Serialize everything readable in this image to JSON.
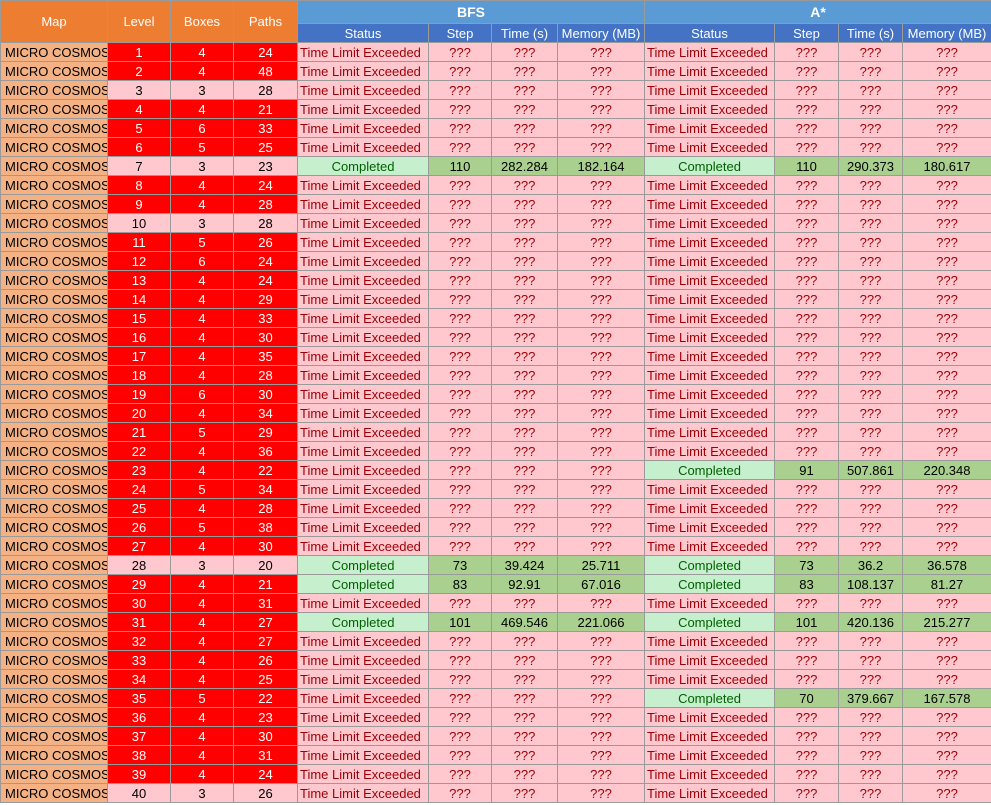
{
  "headers": {
    "map": "Map",
    "level": "Level",
    "boxes": "Boxes",
    "paths": "Paths",
    "bfs": "BFS",
    "astar": "A*",
    "sub": [
      "Status",
      "Step",
      "Time (s)",
      "Memory (MB)"
    ]
  },
  "placeholder": "???",
  "rows": [
    {
      "map": "MICRO COSMOS",
      "level": "1",
      "boxes": "4",
      "paths": "24",
      "red": true,
      "bfs": {
        "status": "Time Limit Exceeded",
        "ok": false
      },
      "astar": {
        "status": "Time Limit Exceeded",
        "ok": false
      }
    },
    {
      "map": "MICRO COSMOS",
      "level": "2",
      "boxes": "4",
      "paths": "48",
      "red": true,
      "bfs": {
        "status": "Time Limit Exceeded",
        "ok": false
      },
      "astar": {
        "status": "Time Limit Exceeded",
        "ok": false
      }
    },
    {
      "map": "MICRO COSMOS",
      "level": "3",
      "boxes": "3",
      "paths": "28",
      "red": false,
      "bfs": {
        "status": "Time Limit Exceeded",
        "ok": false
      },
      "astar": {
        "status": "Time Limit Exceeded",
        "ok": false
      }
    },
    {
      "map": "MICRO COSMOS",
      "level": "4",
      "boxes": "4",
      "paths": "21",
      "red": true,
      "bfs": {
        "status": "Time Limit Exceeded",
        "ok": false
      },
      "astar": {
        "status": "Time Limit Exceeded",
        "ok": false
      }
    },
    {
      "map": "MICRO COSMOS",
      "level": "5",
      "boxes": "6",
      "paths": "33",
      "red": true,
      "bfs": {
        "status": "Time Limit Exceeded",
        "ok": false
      },
      "astar": {
        "status": "Time Limit Exceeded",
        "ok": false
      }
    },
    {
      "map": "MICRO COSMOS",
      "level": "6",
      "boxes": "5",
      "paths": "25",
      "red": true,
      "bfs": {
        "status": "Time Limit Exceeded",
        "ok": false
      },
      "astar": {
        "status": "Time Limit Exceeded",
        "ok": false
      }
    },
    {
      "map": "MICRO COSMOS",
      "level": "7",
      "boxes": "3",
      "paths": "23",
      "red": false,
      "bfs": {
        "status": "Completed",
        "ok": true,
        "step": "110",
        "time": "282.284",
        "memory": "182.164"
      },
      "astar": {
        "status": "Completed",
        "ok": true,
        "step": "110",
        "time": "290.373",
        "memory": "180.617"
      }
    },
    {
      "map": "MICRO COSMOS",
      "level": "8",
      "boxes": "4",
      "paths": "24",
      "red": true,
      "bfs": {
        "status": "Time Limit Exceeded",
        "ok": false
      },
      "astar": {
        "status": "Time Limit Exceeded",
        "ok": false
      }
    },
    {
      "map": "MICRO COSMOS",
      "level": "9",
      "boxes": "4",
      "paths": "28",
      "red": true,
      "bfs": {
        "status": "Time Limit Exceeded",
        "ok": false
      },
      "astar": {
        "status": "Time Limit Exceeded",
        "ok": false
      }
    },
    {
      "map": "MICRO COSMOS",
      "level": "10",
      "boxes": "3",
      "paths": "28",
      "red": false,
      "bfs": {
        "status": "Time Limit Exceeded",
        "ok": false
      },
      "astar": {
        "status": "Time Limit Exceeded",
        "ok": false
      }
    },
    {
      "map": "MICRO COSMOS",
      "level": "11",
      "boxes": "5",
      "paths": "26",
      "red": true,
      "bfs": {
        "status": "Time Limit Exceeded",
        "ok": false
      },
      "astar": {
        "status": "Time Limit Exceeded",
        "ok": false
      }
    },
    {
      "map": "MICRO COSMOS",
      "level": "12",
      "boxes": "6",
      "paths": "24",
      "red": true,
      "bfs": {
        "status": "Time Limit Exceeded",
        "ok": false
      },
      "astar": {
        "status": "Time Limit Exceeded",
        "ok": false
      }
    },
    {
      "map": "MICRO COSMOS",
      "level": "13",
      "boxes": "4",
      "paths": "24",
      "red": true,
      "bfs": {
        "status": "Time Limit Exceeded",
        "ok": false
      },
      "astar": {
        "status": "Time Limit Exceeded",
        "ok": false
      }
    },
    {
      "map": "MICRO COSMOS",
      "level": "14",
      "boxes": "4",
      "paths": "29",
      "red": true,
      "bfs": {
        "status": "Time Limit Exceeded",
        "ok": false
      },
      "astar": {
        "status": "Time Limit Exceeded",
        "ok": false
      }
    },
    {
      "map": "MICRO COSMOS",
      "level": "15",
      "boxes": "4",
      "paths": "33",
      "red": true,
      "bfs": {
        "status": "Time Limit Exceeded",
        "ok": false
      },
      "astar": {
        "status": "Time Limit Exceeded",
        "ok": false
      }
    },
    {
      "map": "MICRO COSMOS",
      "level": "16",
      "boxes": "4",
      "paths": "30",
      "red": true,
      "bfs": {
        "status": "Time Limit Exceeded",
        "ok": false
      },
      "astar": {
        "status": "Time Limit Exceeded",
        "ok": false
      }
    },
    {
      "map": "MICRO COSMOS",
      "level": "17",
      "boxes": "4",
      "paths": "35",
      "red": true,
      "bfs": {
        "status": "Time Limit Exceeded",
        "ok": false
      },
      "astar": {
        "status": "Time Limit Exceeded",
        "ok": false
      }
    },
    {
      "map": "MICRO COSMOS",
      "level": "18",
      "boxes": "4",
      "paths": "28",
      "red": true,
      "bfs": {
        "status": "Time Limit Exceeded",
        "ok": false
      },
      "astar": {
        "status": "Time Limit Exceeded",
        "ok": false
      }
    },
    {
      "map": "MICRO COSMOS",
      "level": "19",
      "boxes": "6",
      "paths": "30",
      "red": true,
      "bfs": {
        "status": "Time Limit Exceeded",
        "ok": false
      },
      "astar": {
        "status": "Time Limit Exceeded",
        "ok": false
      }
    },
    {
      "map": "MICRO COSMOS",
      "level": "20",
      "boxes": "4",
      "paths": "34",
      "red": true,
      "bfs": {
        "status": "Time Limit Exceeded",
        "ok": false
      },
      "astar": {
        "status": "Time Limit Exceeded",
        "ok": false
      }
    },
    {
      "map": "MICRO COSMOS",
      "level": "21",
      "boxes": "5",
      "paths": "29",
      "red": true,
      "bfs": {
        "status": "Time Limit Exceeded",
        "ok": false
      },
      "astar": {
        "status": "Time Limit Exceeded",
        "ok": false
      }
    },
    {
      "map": "MICRO COSMOS",
      "level": "22",
      "boxes": "4",
      "paths": "36",
      "red": true,
      "bfs": {
        "status": "Time Limit Exceeded",
        "ok": false
      },
      "astar": {
        "status": "Time Limit Exceeded",
        "ok": false
      }
    },
    {
      "map": "MICRO COSMOS",
      "level": "23",
      "boxes": "4",
      "paths": "22",
      "red": true,
      "bfs": {
        "status": "Time Limit Exceeded",
        "ok": false
      },
      "astar": {
        "status": "Completed",
        "ok": true,
        "step": "91",
        "time": "507.861",
        "memory": "220.348"
      }
    },
    {
      "map": "MICRO COSMOS",
      "level": "24",
      "boxes": "5",
      "paths": "34",
      "red": true,
      "bfs": {
        "status": "Time Limit Exceeded",
        "ok": false
      },
      "astar": {
        "status": "Time Limit Exceeded",
        "ok": false
      }
    },
    {
      "map": "MICRO COSMOS",
      "level": "25",
      "boxes": "4",
      "paths": "28",
      "red": true,
      "bfs": {
        "status": "Time Limit Exceeded",
        "ok": false
      },
      "astar": {
        "status": "Time Limit Exceeded",
        "ok": false
      }
    },
    {
      "map": "MICRO COSMOS",
      "level": "26",
      "boxes": "5",
      "paths": "38",
      "red": true,
      "bfs": {
        "status": "Time Limit Exceeded",
        "ok": false
      },
      "astar": {
        "status": "Time Limit Exceeded",
        "ok": false
      }
    },
    {
      "map": "MICRO COSMOS",
      "level": "27",
      "boxes": "4",
      "paths": "30",
      "red": true,
      "bfs": {
        "status": "Time Limit Exceeded",
        "ok": false
      },
      "astar": {
        "status": "Time Limit Exceeded",
        "ok": false
      }
    },
    {
      "map": "MICRO COSMOS",
      "level": "28",
      "boxes": "3",
      "paths": "20",
      "red": false,
      "bfs": {
        "status": "Completed",
        "ok": true,
        "step": "73",
        "time": "39.424",
        "memory": "25.711"
      },
      "astar": {
        "status": "Completed",
        "ok": true,
        "step": "73",
        "time": "36.2",
        "memory": "36.578"
      }
    },
    {
      "map": "MICRO COSMOS",
      "level": "29",
      "boxes": "4",
      "paths": "21",
      "red": true,
      "bfs": {
        "status": "Completed",
        "ok": true,
        "step": "83",
        "time": "92.91",
        "memory": "67.016"
      },
      "astar": {
        "status": "Completed",
        "ok": true,
        "step": "83",
        "time": "108.137",
        "memory": "81.27"
      }
    },
    {
      "map": "MICRO COSMOS",
      "level": "30",
      "boxes": "4",
      "paths": "31",
      "red": true,
      "bfs": {
        "status": "Time Limit Exceeded",
        "ok": false
      },
      "astar": {
        "status": "Time Limit Exceeded",
        "ok": false
      }
    },
    {
      "map": "MICRO COSMOS",
      "level": "31",
      "boxes": "4",
      "paths": "27",
      "red": true,
      "bfs": {
        "status": "Completed",
        "ok": true,
        "step": "101",
        "time": "469.546",
        "memory": "221.066"
      },
      "astar": {
        "status": "Completed",
        "ok": true,
        "step": "101",
        "time": "420.136",
        "memory": "215.277"
      }
    },
    {
      "map": "MICRO COSMOS",
      "level": "32",
      "boxes": "4",
      "paths": "27",
      "red": true,
      "bfs": {
        "status": "Time Limit Exceeded",
        "ok": false
      },
      "astar": {
        "status": "Time Limit Exceeded",
        "ok": false
      }
    },
    {
      "map": "MICRO COSMOS",
      "level": "33",
      "boxes": "4",
      "paths": "26",
      "red": true,
      "bfs": {
        "status": "Time Limit Exceeded",
        "ok": false
      },
      "astar": {
        "status": "Time Limit Exceeded",
        "ok": false
      }
    },
    {
      "map": "MICRO COSMOS",
      "level": "34",
      "boxes": "4",
      "paths": "25",
      "red": true,
      "bfs": {
        "status": "Time Limit Exceeded",
        "ok": false
      },
      "astar": {
        "status": "Time Limit Exceeded",
        "ok": false
      }
    },
    {
      "map": "MICRO COSMOS",
      "level": "35",
      "boxes": "5",
      "paths": "22",
      "red": true,
      "bfs": {
        "status": "Time Limit Exceeded",
        "ok": false
      },
      "astar": {
        "status": "Completed",
        "ok": true,
        "step": "70",
        "time": "379.667",
        "memory": "167.578"
      }
    },
    {
      "map": "MICRO COSMOS",
      "level": "36",
      "boxes": "4",
      "paths": "23",
      "red": true,
      "bfs": {
        "status": "Time Limit Exceeded",
        "ok": false
      },
      "astar": {
        "status": "Time Limit Exceeded",
        "ok": false
      }
    },
    {
      "map": "MICRO COSMOS",
      "level": "37",
      "boxes": "4",
      "paths": "30",
      "red": true,
      "bfs": {
        "status": "Time Limit Exceeded",
        "ok": false
      },
      "astar": {
        "status": "Time Limit Exceeded",
        "ok": false
      }
    },
    {
      "map": "MICRO COSMOS",
      "level": "38",
      "boxes": "4",
      "paths": "31",
      "red": true,
      "bfs": {
        "status": "Time Limit Exceeded",
        "ok": false
      },
      "astar": {
        "status": "Time Limit Exceeded",
        "ok": false
      }
    },
    {
      "map": "MICRO COSMOS",
      "level": "39",
      "boxes": "4",
      "paths": "24",
      "red": true,
      "bfs": {
        "status": "Time Limit Exceeded",
        "ok": false
      },
      "astar": {
        "status": "Time Limit Exceeded",
        "ok": false
      }
    },
    {
      "map": "MICRO COSMOS",
      "level": "40",
      "boxes": "3",
      "paths": "26",
      "red": false,
      "bfs": {
        "status": "Time Limit Exceeded",
        "ok": false
      },
      "astar": {
        "status": "Time Limit Exceeded",
        "ok": false
      }
    }
  ],
  "colors": {
    "header_orange": "#ed7d31",
    "header_blue": "#4472c4",
    "header_blue_light": "#5b9bd5",
    "map_cell": "#f4b183",
    "hard_level": "#ff0000",
    "easy_level": "#ffc7ce",
    "tle_fill": "#ffc7ce",
    "tle_text": "#9c0006",
    "completed_fill": "#c6efce",
    "completed_text": "#006100",
    "completed_values_fill": "#a9d08e"
  }
}
